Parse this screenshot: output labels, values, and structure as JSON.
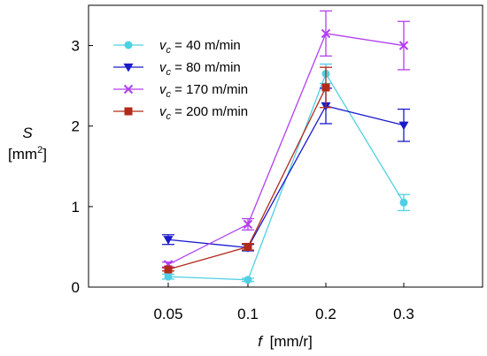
{
  "chart_data": {
    "type": "line",
    "categories": [
      "0.05",
      "0.1",
      "0.2",
      "0.3"
    ],
    "xlabel": {
      "var": "f",
      "unit": "[mm/r]"
    },
    "ylabel": {
      "var": "S",
      "unit_pre": "[mm",
      "unit_sup": "2",
      "unit_post": "]"
    },
    "ylim": [
      0,
      3.5
    ],
    "yticks": [
      "0",
      "1",
      "2",
      "3"
    ],
    "grid": false,
    "legend_position": "top-left",
    "series": [
      {
        "name_var": "v",
        "name_sub": "c",
        "name_value": " = 40 m/min",
        "color": "#4fd0e4",
        "marker": "circle",
        "values": [
          0.13,
          0.09,
          2.65,
          1.05
        ],
        "errors": [
          0.03,
          0.02,
          0.12,
          0.1
        ]
      },
      {
        "name_var": "v",
        "name_sub": "c",
        "name_value": " = 80 m/min",
        "color": "#1a1acc",
        "marker": "triangle-down",
        "values": [
          0.59,
          0.49,
          2.25,
          2.01
        ],
        "errors": [
          0.06,
          0.04,
          0.22,
          0.2
        ]
      },
      {
        "name_var": "v",
        "name_sub": "c",
        "name_value": " = 170 m/min",
        "color": "#b23ff0",
        "marker": "x",
        "values": [
          0.28,
          0.78,
          3.15,
          3.0
        ],
        "errors": [
          0.03,
          0.07,
          0.28,
          0.3
        ]
      },
      {
        "name_var": "v",
        "name_sub": "c",
        "name_value": " = 200 m/min",
        "color": "#b22a1a",
        "marker": "square",
        "values": [
          0.22,
          0.5,
          2.48,
          null
        ],
        "errors": [
          0.02,
          0.04,
          0.25,
          null
        ]
      }
    ]
  }
}
